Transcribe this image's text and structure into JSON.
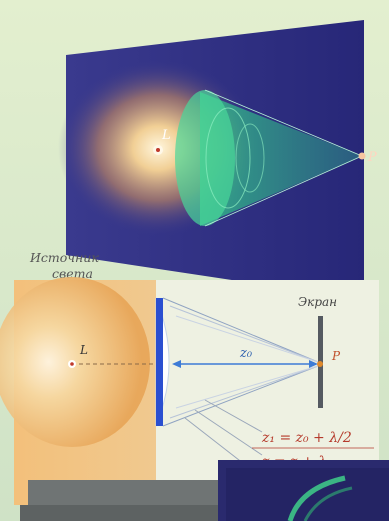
{
  "labels": {
    "source_top": "L",
    "point_top": "P",
    "source_caption_line1": "Источник",
    "source_caption_line2": "света",
    "screen": "Экран",
    "source_bottom": "L",
    "distance": "z₀",
    "point_bottom": "P",
    "formula1": "z₁ = z₀ + λ/2",
    "formula2": "z = z + λ"
  },
  "colors": {
    "background": "#d6e8c7",
    "panel_dark": "#2f2f87",
    "cone_green": "#3cd18c",
    "glow": "#f3dfae",
    "formula_red": "#b53a2b",
    "blue_slab": "#2a4fd0"
  }
}
